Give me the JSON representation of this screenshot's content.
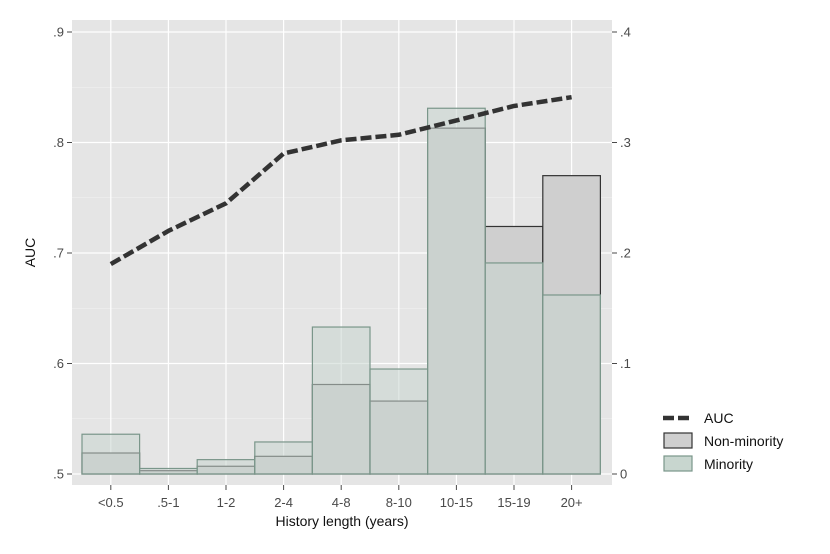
{
  "chart_data": {
    "type": "bar",
    "categories": [
      "<0.5",
      ".5-1",
      "1-2",
      "2-4",
      "4-8",
      "8-10",
      "10-15",
      "15-19",
      "20+"
    ],
    "xlabel": "History length (years)",
    "ylabel": "AUC",
    "ylim": [
      0.5,
      0.9
    ],
    "y_ticks": [
      ".5",
      ".6",
      ".7",
      ".8",
      ".9"
    ],
    "y2lim": [
      0,
      0.4
    ],
    "y2_ticks": [
      "0",
      ".1",
      ".2",
      ".3",
      ".4"
    ],
    "grid": true,
    "legend_position": "right",
    "series": [
      {
        "name": "AUC",
        "kind": "line",
        "axis": "left",
        "style": "dashed",
        "color": "#333333",
        "values": [
          0.69,
          0.72,
          0.745,
          0.79,
          0.802,
          0.807,
          0.82,
          0.833,
          0.841
        ]
      },
      {
        "name": "Non-minority",
        "kind": "bar",
        "axis": "right",
        "color": "#cfcfcf",
        "stroke": "#333333",
        "values": [
          0.019,
          0.003,
          0.007,
          0.016,
          0.081,
          0.066,
          0.313,
          0.224,
          0.27
        ]
      },
      {
        "name": "Minority",
        "kind": "bar",
        "axis": "right",
        "color": "#c8d6cf",
        "stroke": "#7a968a",
        "values": [
          0.036,
          0.005,
          0.013,
          0.029,
          0.133,
          0.095,
          0.331,
          0.191,
          0.162
        ]
      }
    ],
    "colors": {
      "panel_background": "#e5e5e5",
      "gridline": "#ffffff"
    }
  }
}
